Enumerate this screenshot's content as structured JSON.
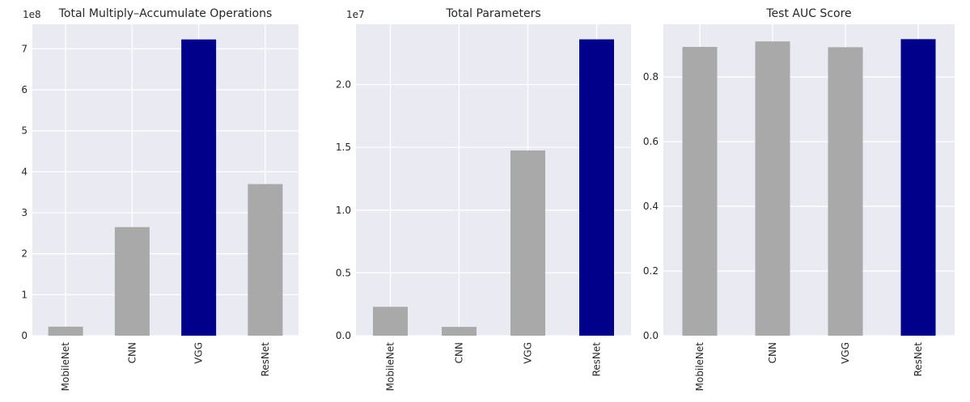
{
  "chart_data": [
    {
      "type": "bar",
      "title": "Total Multiply–Accumulate Operations",
      "categories": [
        "MobileNet",
        "CNN",
        "VGG",
        "ResNet"
      ],
      "values": [
        22000000,
        265000000,
        723000000,
        370000000
      ],
      "offset_label": "1e8",
      "ylim": [
        0,
        760000000
      ],
      "yticks": [
        0,
        100000000,
        200000000,
        300000000,
        400000000,
        500000000,
        600000000,
        700000000
      ],
      "ytick_labels": [
        "0",
        "1",
        "2",
        "3",
        "4",
        "5",
        "6",
        "7"
      ],
      "bar_colors": [
        "#a9a9a9",
        "#a9a9a9",
        "#00008b",
        "#a9a9a9"
      ],
      "grid": true
    },
    {
      "type": "bar",
      "title": "Total Parameters",
      "categories": [
        "MobileNet",
        "CNN",
        "VGG",
        "ResNet"
      ],
      "values": [
        2300000,
        700000,
        14750000,
        23600000
      ],
      "offset_label": "1e7",
      "ylim": [
        0,
        24800000
      ],
      "yticks": [
        0,
        5000000,
        10000000,
        15000000,
        20000000
      ],
      "ytick_labels": [
        "0.0",
        "0.5",
        "1.0",
        "1.5",
        "2.0"
      ],
      "bar_colors": [
        "#a9a9a9",
        "#a9a9a9",
        "#a9a9a9",
        "#00008b"
      ],
      "grid": true
    },
    {
      "type": "bar",
      "title": "Test AUC Score",
      "categories": [
        "MobileNet",
        "CNN",
        "VGG",
        "ResNet"
      ],
      "values": [
        0.893,
        0.91,
        0.892,
        0.917
      ],
      "offset_label": "",
      "ylim": [
        0,
        0.963
      ],
      "yticks": [
        0,
        0.2,
        0.4,
        0.6,
        0.8
      ],
      "ytick_labels": [
        "0.0",
        "0.2",
        "0.4",
        "0.6",
        "0.8"
      ],
      "bar_colors": [
        "#a9a9a9",
        "#a9a9a9",
        "#a9a9a9",
        "#00008b"
      ],
      "grid": true
    }
  ],
  "style": {
    "plot_background": "#eaeaf2",
    "grid_color": "#ffffff"
  }
}
